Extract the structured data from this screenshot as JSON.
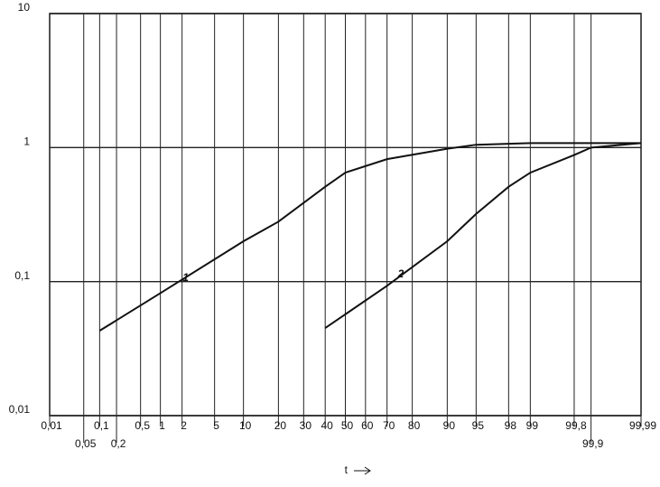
{
  "chart_data": {
    "type": "line",
    "xlabel": "t",
    "xscale": "probability",
    "yscale": "log",
    "grid": true,
    "xlim": [
      0.01,
      99.99
    ],
    "ylim": [
      0.01,
      10
    ],
    "xticks": [
      {
        "value": 0.01,
        "label": "0,01"
      },
      {
        "value": 0.05,
        "label": "0,05"
      },
      {
        "value": 0.1,
        "label": "0,1"
      },
      {
        "value": 0.2,
        "label": "0,2"
      },
      {
        "value": 0.5,
        "label": "0,5"
      },
      1,
      2,
      5,
      10,
      20,
      30,
      40,
      50,
      60,
      70,
      80,
      90,
      95,
      98,
      99,
      {
        "value": 99.8,
        "label": "99,8"
      },
      {
        "value": 99.9,
        "label": "99,9"
      },
      {
        "value": 99.99,
        "label": "99,99"
      }
    ],
    "yticks": [
      {
        "value": 0.01,
        "label": "0,01"
      },
      {
        "value": 0.1,
        "label": "0,1"
      },
      1,
      10
    ],
    "series": [
      {
        "name": "1",
        "color": "#111111",
        "x": [
          0.1,
          1,
          10,
          20,
          40,
          50,
          70,
          90,
          95,
          99,
          99.99
        ],
        "values": [
          0.043,
          0.082,
          0.2,
          0.28,
          0.51,
          0.65,
          0.82,
          0.98,
          1.05,
          1.08,
          1.08
        ]
      },
      {
        "name": "2",
        "color": "#111111",
        "x": [
          40,
          70,
          90,
          95,
          98,
          99,
          99.8,
          99.9,
          99.99
        ],
        "values": [
          0.045,
          0.093,
          0.2,
          0.32,
          0.51,
          0.65,
          0.88,
          1.0,
          1.08
        ]
      }
    ]
  }
}
